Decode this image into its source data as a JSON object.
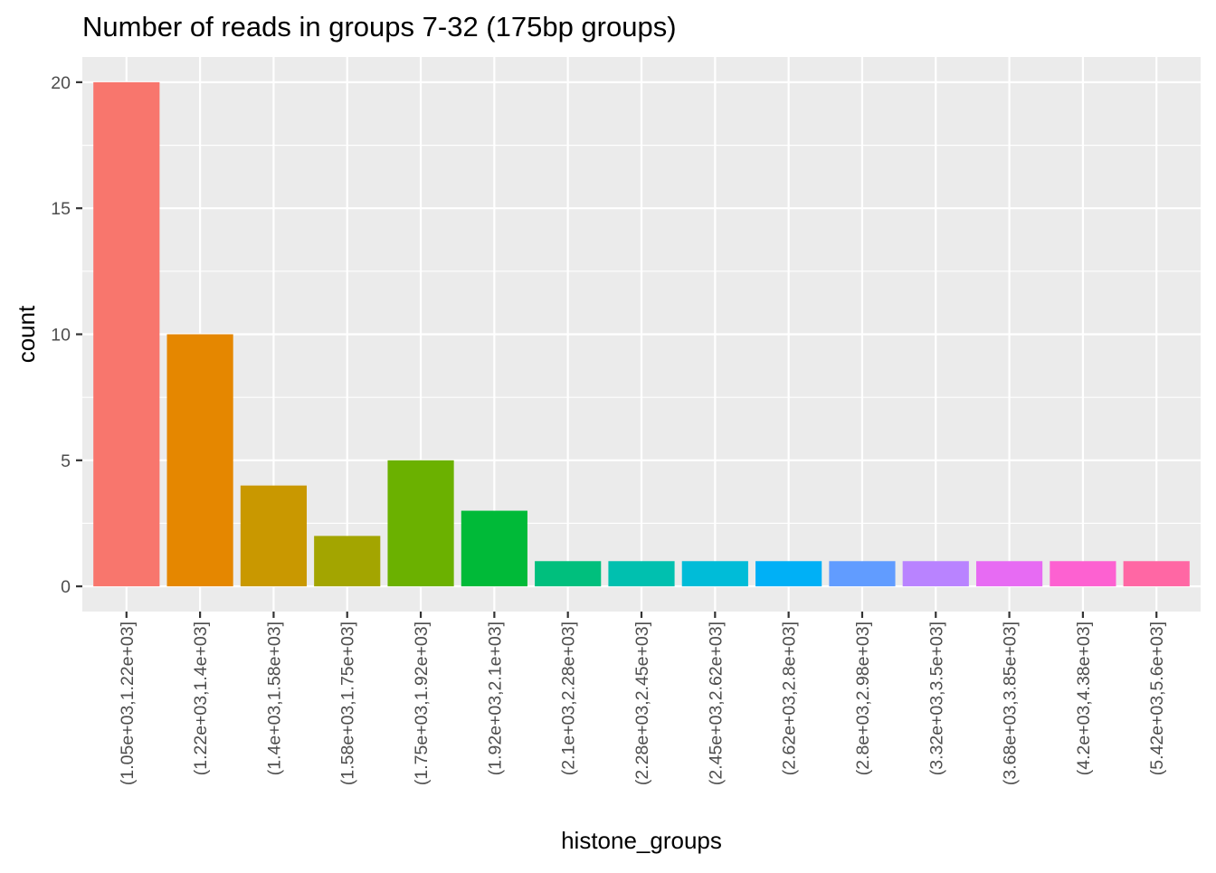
{
  "chart_data": {
    "type": "bar",
    "title": "Number of reads in groups 7-32 (175bp groups)",
    "xlabel": "histone_groups",
    "ylabel": "count",
    "ylim": [
      -1.0,
      21.0
    ],
    "yticks": [
      0,
      5,
      10,
      15,
      20
    ],
    "grid": true,
    "legend": "none",
    "categories": [
      "(1.05e+03,1.22e+03]",
      "(1.22e+03,1.4e+03]",
      "(1.4e+03,1.58e+03]",
      "(1.58e+03,1.75e+03]",
      "(1.75e+03,1.92e+03]",
      "(1.92e+03,2.1e+03]",
      "(2.1e+03,2.28e+03]",
      "(2.28e+03,2.45e+03]",
      "(2.45e+03,2.62e+03]",
      "(2.62e+03,2.8e+03]",
      "(2.8e+03,2.98e+03]",
      "(3.32e+03,3.5e+03]",
      "(3.68e+03,3.85e+03]",
      "(4.2e+03,4.38e+03]",
      "(5.42e+03,5.6e+03]"
    ],
    "values": [
      20,
      10,
      4,
      2,
      5,
      3,
      1,
      1,
      1,
      1,
      1,
      1,
      1,
      1,
      1
    ],
    "colors": [
      "#F8766D",
      "#E58700",
      "#C99800",
      "#A3A500",
      "#6BB100",
      "#00BA38",
      "#00BF7D",
      "#00C0AF",
      "#00BCD8",
      "#00B0F6",
      "#619CFF",
      "#B983FF",
      "#E76BF3",
      "#FD61D1",
      "#FF67A4"
    ],
    "panel_background": "#EBEBEB",
    "grid_color": "#FFFFFF"
  }
}
